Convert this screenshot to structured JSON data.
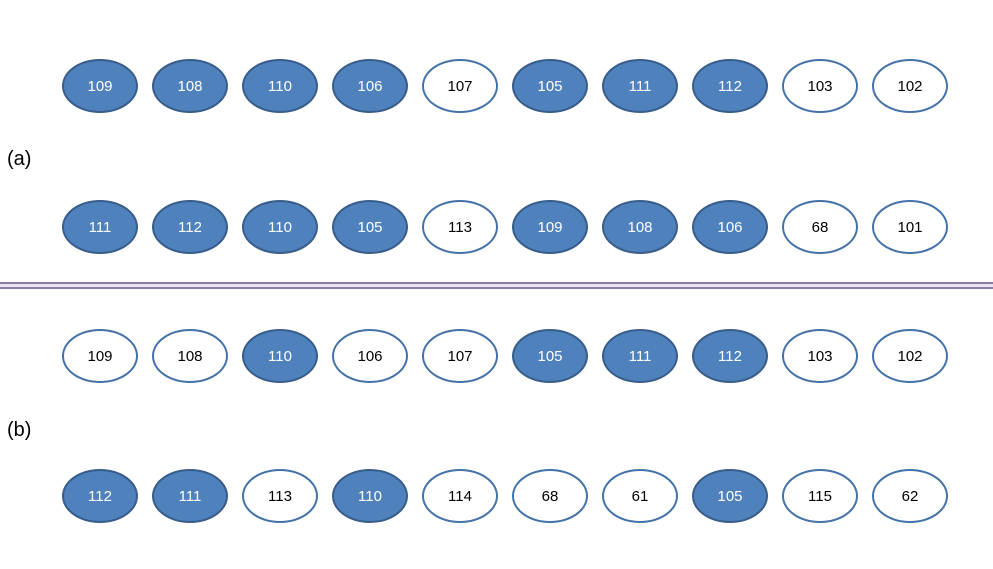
{
  "colors": {
    "node_filled_bg": "#4F81BD",
    "node_filled_border": "#385D8A",
    "node_filled_text": "#FFFFFF",
    "node_empty_bg": "#FFFFFF",
    "node_empty_border": "#4472A8",
    "node_empty_text": "#000000",
    "divider_edge": "#8C7BA8",
    "divider_mid": "#E9E6F0"
  },
  "sections": [
    {
      "id": "a",
      "label": "(a)",
      "rows": [
        {
          "nodes": [
            {
              "value": "109",
              "filled": true
            },
            {
              "value": "108",
              "filled": true
            },
            {
              "value": "110",
              "filled": true
            },
            {
              "value": "106",
              "filled": true
            },
            {
              "value": "107",
              "filled": false
            },
            {
              "value": "105",
              "filled": true
            },
            {
              "value": "111",
              "filled": true
            },
            {
              "value": "112",
              "filled": true
            },
            {
              "value": "103",
              "filled": false
            },
            {
              "value": "102",
              "filled": false
            }
          ]
        },
        {
          "nodes": [
            {
              "value": "111",
              "filled": true
            },
            {
              "value": "112",
              "filled": true
            },
            {
              "value": "110",
              "filled": true
            },
            {
              "value": "105",
              "filled": true
            },
            {
              "value": "113",
              "filled": false
            },
            {
              "value": "109",
              "filled": true
            },
            {
              "value": "108",
              "filled": true
            },
            {
              "value": "106",
              "filled": true
            },
            {
              "value": "68",
              "filled": false
            },
            {
              "value": "101",
              "filled": false
            }
          ]
        }
      ]
    },
    {
      "id": "b",
      "label": "(b)",
      "rows": [
        {
          "nodes": [
            {
              "value": "109",
              "filled": false
            },
            {
              "value": "108",
              "filled": false
            },
            {
              "value": "110",
              "filled": true
            },
            {
              "value": "106",
              "filled": false
            },
            {
              "value": "107",
              "filled": false
            },
            {
              "value": "105",
              "filled": true
            },
            {
              "value": "111",
              "filled": true
            },
            {
              "value": "112",
              "filled": true
            },
            {
              "value": "103",
              "filled": false
            },
            {
              "value": "102",
              "filled": false
            }
          ]
        },
        {
          "nodes": [
            {
              "value": "112",
              "filled": true
            },
            {
              "value": "111",
              "filled": true
            },
            {
              "value": "113",
              "filled": false
            },
            {
              "value": "110",
              "filled": true
            },
            {
              "value": "114",
              "filled": false
            },
            {
              "value": "68",
              "filled": false
            },
            {
              "value": "61",
              "filled": false
            },
            {
              "value": "105",
              "filled": true
            },
            {
              "value": "115",
              "filled": false
            },
            {
              "value": "62",
              "filled": false
            }
          ]
        }
      ]
    }
  ]
}
